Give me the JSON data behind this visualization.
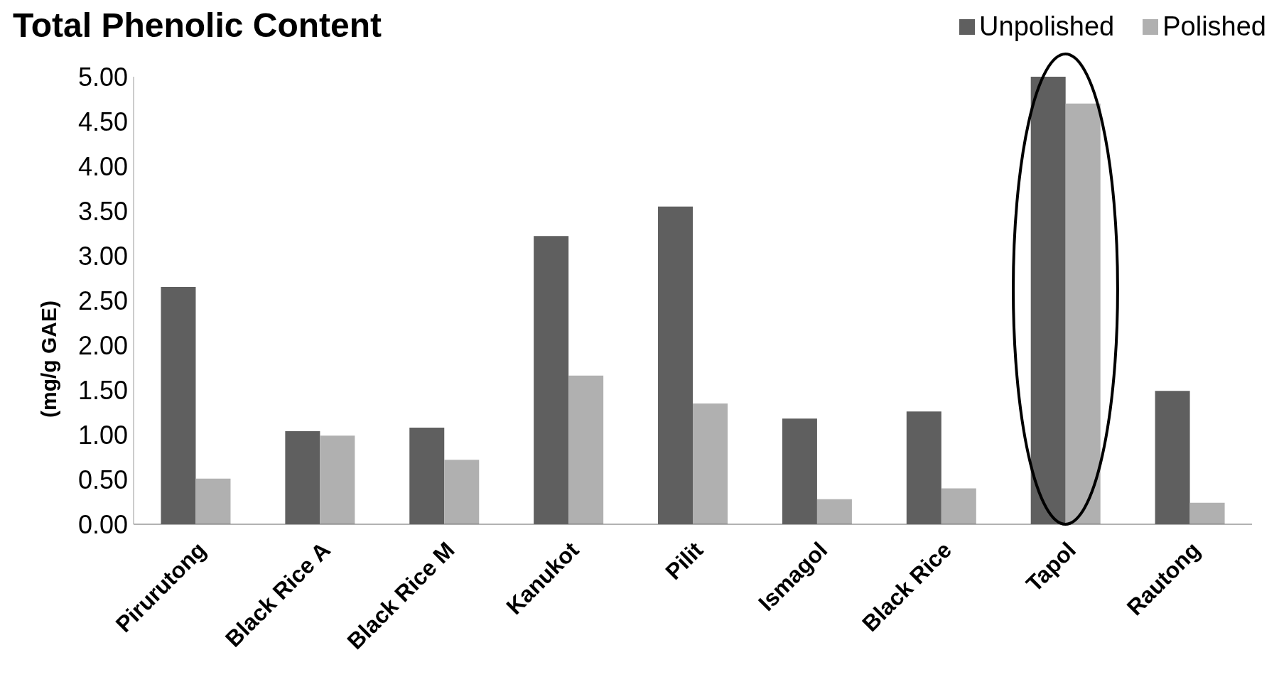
{
  "chart_data": {
    "type": "bar",
    "title": "Total Phenolic Content",
    "ylabel": "(mg/g GAE)",
    "categories": [
      "Pirurutong",
      "Black Rice A",
      "Black Rice M",
      "Kanukot",
      "Pilit",
      "Ismagol",
      "Black Rice",
      "Tapol",
      "Rautong"
    ],
    "series": [
      {
        "name": "Unpolished",
        "color": "#5f5f5f",
        "values": [
          2.65,
          1.04,
          1.08,
          3.22,
          3.55,
          1.18,
          1.26,
          5.0,
          1.49
        ]
      },
      {
        "name": "Polished",
        "color": "#b0b0b0",
        "values": [
          0.51,
          0.99,
          0.72,
          1.66,
          1.35,
          0.28,
          0.4,
          4.7,
          0.24
        ]
      }
    ],
    "ylim": [
      0,
      5
    ],
    "yticks": [
      {
        "value": 0,
        "label": "0.00"
      },
      {
        "value": 0.5,
        "label": "0.50"
      },
      {
        "value": 1,
        "label": "1.00"
      },
      {
        "value": 1.5,
        "label": "1.50"
      },
      {
        "value": 2,
        "label": "2.00"
      },
      {
        "value": 2.5,
        "label": "2.50"
      },
      {
        "value": 3,
        "label": "3.00"
      },
      {
        "value": 3.5,
        "label": "3.50"
      },
      {
        "value": 4,
        "label": "4.00"
      },
      {
        "value": 4.5,
        "label": "4.50"
      },
      {
        "value": 5,
        "label": "5.00"
      }
    ],
    "grid": false,
    "legend": "top right"
  }
}
